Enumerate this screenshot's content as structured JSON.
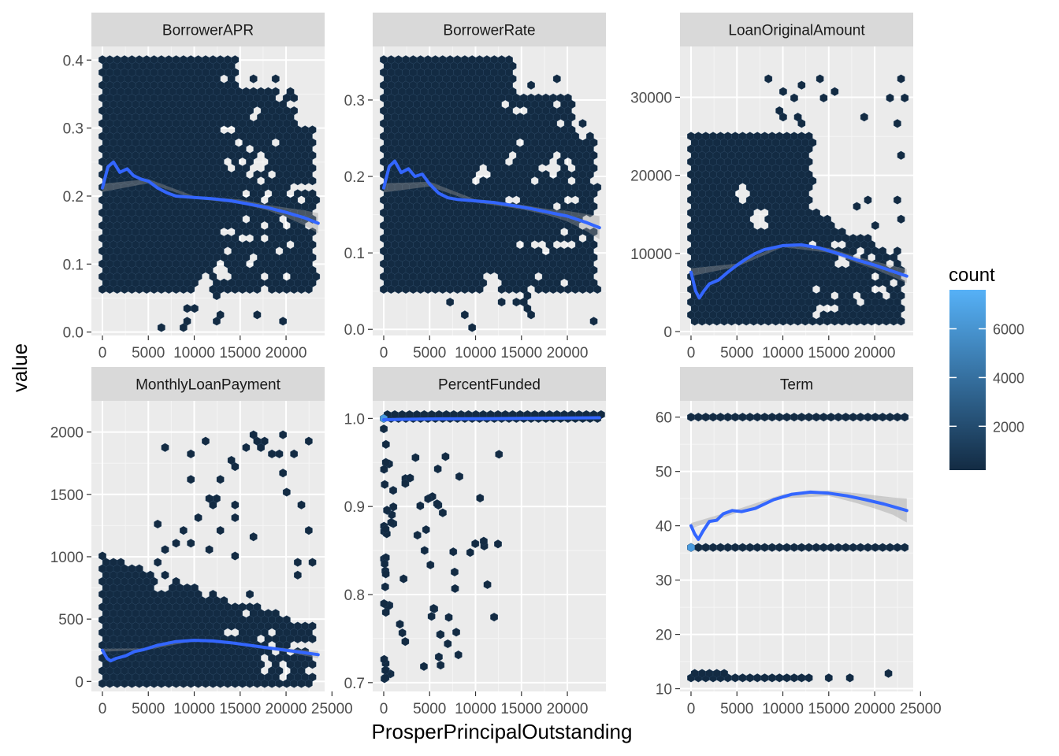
{
  "chart_data": {
    "type": "hexbin-facets",
    "xlabel": "ProsperPrincipalOutstanding",
    "ylabel": "value",
    "legend": {
      "title": "count",
      "ticks": [
        "2000",
        "4000",
        "6000"
      ],
      "tick_values": [
        2000,
        4000,
        6000
      ],
      "range": [
        200,
        7600
      ],
      "placement": "right",
      "color_low": "#132B43",
      "color_high": "#56B1F7"
    },
    "smooth_color": "#3366FF",
    "hex_color": "#132B43",
    "panels": [
      {
        "title": "BorrowerAPR",
        "xlim": [
          -1200,
          24200
        ],
        "ylim": [
          -0.005,
          0.42
        ],
        "xticks": [
          0,
          5000,
          10000,
          15000,
          20000
        ],
        "xtick_labels": [
          "0",
          "5000",
          "10000",
          "15000",
          "20000"
        ],
        "yticks": [
          0.0,
          0.1,
          0.2,
          0.3,
          0.4
        ],
        "ytick_labels": [
          "0.0",
          "0.1",
          "0.2",
          "0.3",
          "0.4"
        ],
        "smooth": [
          [
            0,
            0.212
          ],
          [
            600,
            0.243
          ],
          [
            1200,
            0.25
          ],
          [
            1900,
            0.235
          ],
          [
            2700,
            0.24
          ],
          [
            3400,
            0.23
          ],
          [
            4200,
            0.225
          ],
          [
            5000,
            0.222
          ],
          [
            6000,
            0.212
          ],
          [
            7000,
            0.205
          ],
          [
            8000,
            0.2
          ],
          [
            10000,
            0.198
          ],
          [
            12000,
            0.196
          ],
          [
            14000,
            0.193
          ],
          [
            16000,
            0.188
          ],
          [
            18000,
            0.183
          ],
          [
            20000,
            0.176
          ],
          [
            22000,
            0.168
          ],
          [
            23500,
            0.16
          ]
        ],
        "band": [
          [
            0,
            0.206,
            0.218
          ],
          [
            5000,
            0.219,
            0.225
          ],
          [
            10000,
            0.196,
            0.2
          ],
          [
            15000,
            0.189,
            0.195
          ],
          [
            18000,
            0.179,
            0.187
          ],
          [
            20000,
            0.169,
            0.183
          ],
          [
            22000,
            0.157,
            0.179
          ],
          [
            23500,
            0.145,
            0.175
          ]
        ],
        "highlight": []
      },
      {
        "title": "BorrowerRate",
        "xlim": [
          -1200,
          24200
        ],
        "ylim": [
          -0.008,
          0.37
        ],
        "xticks": [
          0,
          5000,
          10000,
          15000,
          20000
        ],
        "xtick_labels": [
          "0",
          "5000",
          "10000",
          "15000",
          "20000"
        ],
        "yticks": [
          0.0,
          0.1,
          0.2,
          0.3
        ],
        "ytick_labels": [
          "0.0",
          "0.1",
          "0.2",
          "0.3"
        ],
        "smooth": [
          [
            0,
            0.185
          ],
          [
            600,
            0.213
          ],
          [
            1200,
            0.22
          ],
          [
            1900,
            0.205
          ],
          [
            2700,
            0.21
          ],
          [
            3400,
            0.2
          ],
          [
            4200,
            0.203
          ],
          [
            5000,
            0.19
          ],
          [
            6000,
            0.178
          ],
          [
            7000,
            0.172
          ],
          [
            8000,
            0.17
          ],
          [
            10000,
            0.168
          ],
          [
            12000,
            0.166
          ],
          [
            14000,
            0.162
          ],
          [
            16000,
            0.158
          ],
          [
            18000,
            0.153
          ],
          [
            20000,
            0.148
          ],
          [
            22000,
            0.14
          ],
          [
            23500,
            0.133
          ]
        ],
        "band": [
          [
            0,
            0.179,
            0.191
          ],
          [
            5000,
            0.187,
            0.193
          ],
          [
            10000,
            0.166,
            0.17
          ],
          [
            15000,
            0.157,
            0.163
          ],
          [
            18000,
            0.149,
            0.157
          ],
          [
            20000,
            0.141,
            0.155
          ],
          [
            22000,
            0.129,
            0.151
          ],
          [
            23500,
            0.118,
            0.148
          ]
        ],
        "highlight": []
      },
      {
        "title": "LoanOriginalAmount",
        "xlim": [
          -1200,
          24200
        ],
        "ylim": [
          -500,
          36500
        ],
        "xticks": [
          0,
          5000,
          10000,
          15000,
          20000
        ],
        "xtick_labels": [
          "0",
          "5000",
          "10000",
          "15000",
          "20000"
        ],
        "yticks": [
          0,
          10000,
          20000,
          30000
        ],
        "ytick_labels": [
          "0",
          "10000",
          "20000",
          "30000"
        ],
        "smooth": [
          [
            0,
            7600
          ],
          [
            500,
            5200
          ],
          [
            900,
            4300
          ],
          [
            1400,
            5200
          ],
          [
            2000,
            6100
          ],
          [
            3000,
            6600
          ],
          [
            4000,
            7600
          ],
          [
            5000,
            8500
          ],
          [
            6000,
            9300
          ],
          [
            7000,
            10000
          ],
          [
            8000,
            10500
          ],
          [
            10000,
            11000
          ],
          [
            12000,
            11100
          ],
          [
            14000,
            10700
          ],
          [
            16000,
            10000
          ],
          [
            18000,
            9200
          ],
          [
            20000,
            8500
          ],
          [
            22000,
            7700
          ],
          [
            23500,
            7100
          ]
        ],
        "band": [
          [
            0,
            7100,
            8100
          ],
          [
            5000,
            8300,
            8700
          ],
          [
            10000,
            10800,
            11200
          ],
          [
            15000,
            10100,
            10700
          ],
          [
            18000,
            8800,
            9600
          ],
          [
            20000,
            8000,
            9000
          ],
          [
            22000,
            7000,
            8400
          ],
          [
            23500,
            6200,
            8000
          ]
        ],
        "highlight": []
      },
      {
        "title": "MonthlyLoanPayment",
        "xlim": [
          -1200,
          24200
        ],
        "ylim": [
          -80,
          2250
        ],
        "xticks": [
          0,
          5000,
          10000,
          15000,
          20000,
          25000
        ],
        "xtick_labels": [
          "0",
          "5000",
          "10000",
          "15000",
          "20000",
          "25000"
        ],
        "yticks": [
          0,
          500,
          1000,
          1500,
          2000
        ],
        "ytick_labels": [
          "0",
          "500",
          "1000",
          "1500",
          "2000"
        ],
        "smooth": [
          [
            0,
            250
          ],
          [
            500,
            185
          ],
          [
            900,
            165
          ],
          [
            1500,
            185
          ],
          [
            2500,
            205
          ],
          [
            3500,
            240
          ],
          [
            4500,
            255
          ],
          [
            6000,
            290
          ],
          [
            8000,
            320
          ],
          [
            10000,
            330
          ],
          [
            12000,
            325
          ],
          [
            14000,
            310
          ],
          [
            16000,
            290
          ],
          [
            18000,
            270
          ],
          [
            20000,
            250
          ],
          [
            22000,
            230
          ],
          [
            23500,
            215
          ]
        ],
        "band": [
          [
            0,
            238,
            262
          ],
          [
            5000,
            254,
            266
          ],
          [
            10000,
            325,
            335
          ],
          [
            15000,
            292,
            308
          ],
          [
            18000,
            258,
            282
          ],
          [
            20000,
            234,
            266
          ],
          [
            22000,
            207,
            253
          ],
          [
            23500,
            185,
            245
          ]
        ],
        "highlight": []
      },
      {
        "title": "PercentFunded",
        "xlim": [
          -1200,
          24200
        ],
        "ylim": [
          0.69,
          1.02
        ],
        "xticks": [
          0,
          5000,
          10000,
          15000,
          20000
        ],
        "xtick_labels": [
          "0",
          "5000",
          "10000",
          "15000",
          "20000"
        ],
        "yticks": [
          0.7,
          0.8,
          0.9,
          1.0
        ],
        "ytick_labels": [
          "0.7",
          "0.8",
          "0.9",
          "1.0"
        ],
        "smooth": [
          [
            0,
            0.9985
          ],
          [
            2000,
            0.999
          ],
          [
            6000,
            0.9995
          ],
          [
            12000,
            0.9998
          ],
          [
            18000,
            1.0003
          ],
          [
            23500,
            1.0008
          ]
        ],
        "band": [],
        "highlight": [
          [
            0,
            1.0
          ]
        ]
      },
      {
        "title": "Term",
        "xlim": [
          -1200,
          24200
        ],
        "ylim": [
          9.5,
          63
        ],
        "xticks": [
          0,
          5000,
          10000,
          15000,
          20000,
          25000
        ],
        "xtick_labels": [
          "0",
          "5000",
          "10000",
          "15000",
          "20000",
          "25000"
        ],
        "yticks": [
          10,
          20,
          30,
          40,
          50,
          60
        ],
        "ytick_labels": [
          "10",
          "20",
          "30",
          "40",
          "50",
          "60"
        ],
        "smooth": [
          [
            0,
            40
          ],
          [
            400,
            38.5
          ],
          [
            800,
            37.5
          ],
          [
            1300,
            39
          ],
          [
            2000,
            40.8
          ],
          [
            2800,
            41
          ],
          [
            3500,
            42.2
          ],
          [
            4500,
            42.8
          ],
          [
            5500,
            42.6
          ],
          [
            7000,
            43.2
          ],
          [
            9000,
            44.8
          ],
          [
            11000,
            45.8
          ],
          [
            13000,
            46.2
          ],
          [
            15000,
            46
          ],
          [
            17000,
            45.5
          ],
          [
            19000,
            44.8
          ],
          [
            21000,
            44
          ],
          [
            23500,
            42.8
          ]
        ],
        "band": [
          [
            0,
            39.5,
            40.5
          ],
          [
            5000,
            42.4,
            43
          ],
          [
            10000,
            45,
            45.8
          ],
          [
            15000,
            45.5,
            46.5
          ],
          [
            18000,
            44.2,
            46
          ],
          [
            20000,
            43.2,
            45.6
          ],
          [
            22000,
            42,
            45.2
          ],
          [
            23500,
            40.6,
            45
          ]
        ],
        "highlight": [
          [
            0,
            36
          ]
        ]
      }
    ]
  }
}
